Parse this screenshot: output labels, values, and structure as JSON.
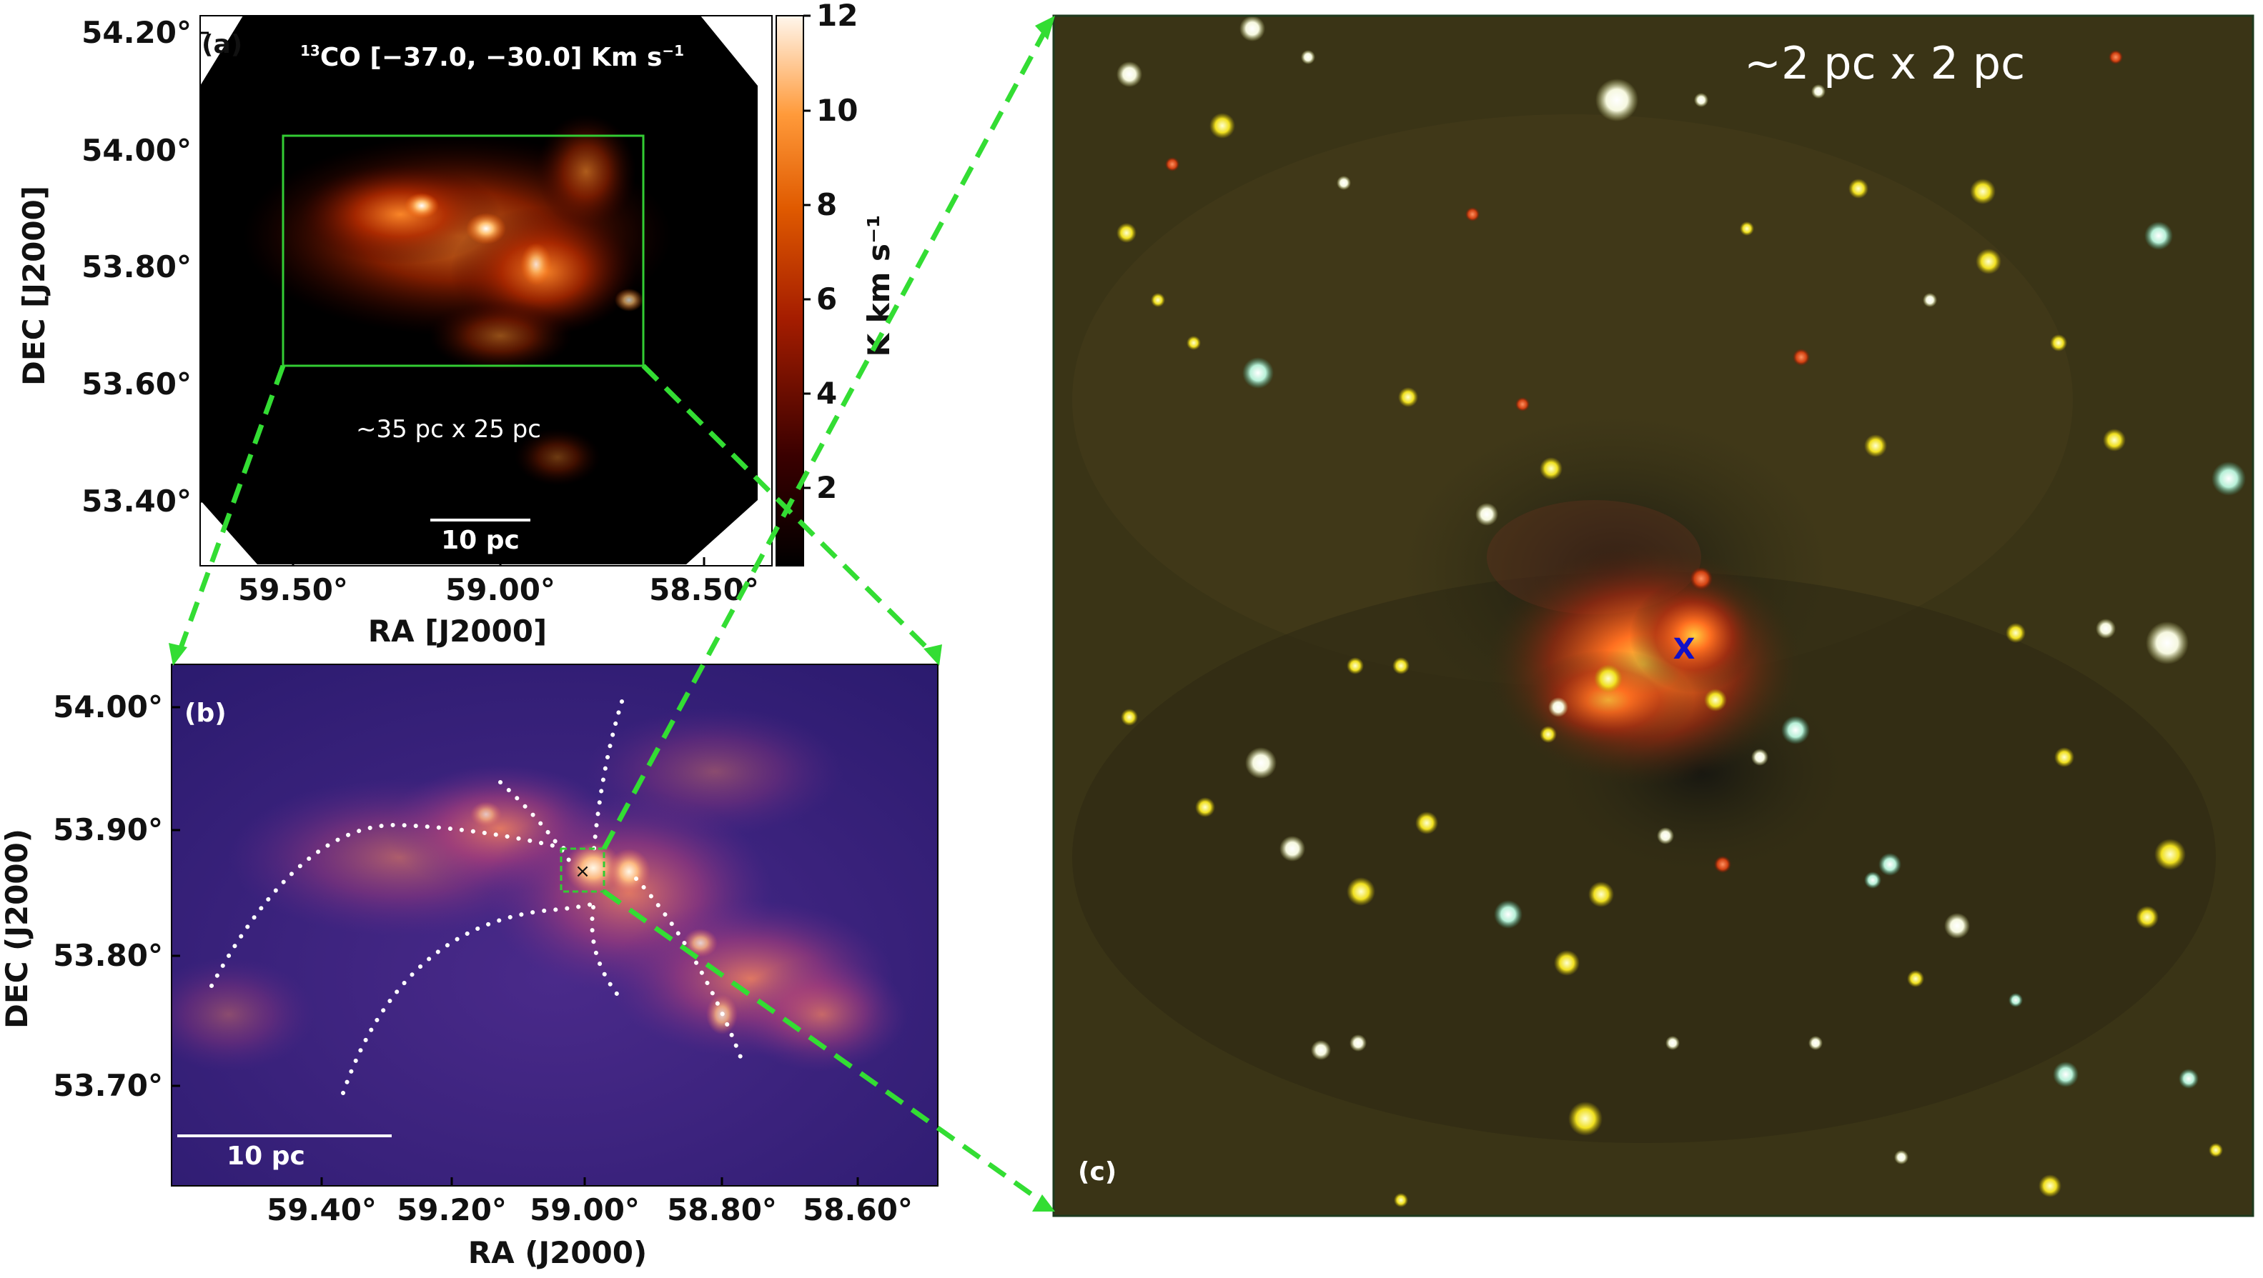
{
  "figure": {
    "panel_a": {
      "label": "(a)",
      "title_prefix": "13",
      "title_main": "CO [−37.0, −30.0] Km s",
      "title_exp": "−1",
      "box_annotation": "~35 pc x 25 pc",
      "scalebar_label": "10 pc",
      "xlabel": "RA [J2000]",
      "ylabel": "DEC [J2000]",
      "xticks": [
        "59.50°",
        "59.00°",
        "58.50°"
      ],
      "yticks": [
        "54.20°",
        "54.00°",
        "53.80°",
        "53.60°",
        "53.40°"
      ],
      "colorbar": {
        "label": "K km s⁻¹",
        "ticks": [
          "12",
          "10",
          "8",
          "6",
          "4",
          "2"
        ],
        "range": [
          1,
          12
        ],
        "colormap": "gist_heat"
      }
    },
    "panel_b": {
      "label": "(b)",
      "scalebar_label": "10 pc",
      "xlabel": "RA (J2000)",
      "ylabel": "DEC (J2000)",
      "xticks": [
        "59.40°",
        "59.20°",
        "59.00°",
        "58.80°",
        "58.60°"
      ],
      "yticks": [
        "54.00°",
        "53.90°",
        "53.80°",
        "53.70°"
      ],
      "marker": "×",
      "colormap": "magma"
    },
    "panel_c": {
      "label": "(c)",
      "annotation": "~2 pc x 2 pc",
      "marker": "X",
      "marker_color": "#1010c8"
    },
    "colors": {
      "zoom_lines": "#33dd33",
      "box": "#33cc33"
    }
  }
}
